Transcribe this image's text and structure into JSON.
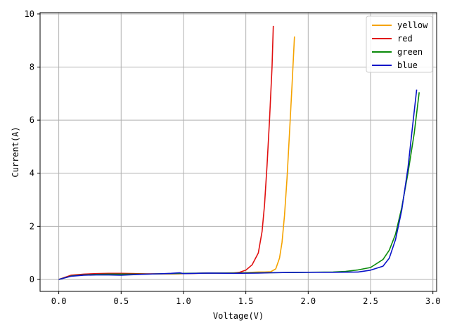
{
  "chart_data": {
    "type": "line",
    "title": "",
    "xlabel": "Voltage(V)",
    "ylabel": "Current(A)",
    "xlim": [
      -0.15,
      3.03
    ],
    "ylim": [
      -0.45,
      10.05
    ],
    "xticks": [
      0.0,
      0.5,
      1.0,
      1.5,
      2.0,
      2.5,
      3.0
    ],
    "xtick_labels": [
      "0.0",
      "0.5",
      "1.0",
      "1.5",
      "2.0",
      "2.5",
      "3.0"
    ],
    "yticks": [
      0,
      2,
      4,
      6,
      8,
      10
    ],
    "ytick_labels": [
      "0",
      "2",
      "4",
      "6",
      "8",
      "10"
    ],
    "grid": true,
    "legend_position": "top-right",
    "series": [
      {
        "name": "yellow",
        "color": "#f5a300",
        "x": [
          0.0,
          0.1,
          0.2,
          0.3,
          0.4,
          0.5,
          0.6,
          0.7,
          0.8,
          0.9,
          1.0,
          1.1,
          1.2,
          1.3,
          1.4,
          1.5,
          1.6,
          1.65,
          1.7,
          1.74,
          1.77,
          1.79,
          1.81,
          1.83,
          1.85,
          1.87,
          1.89
        ],
        "y": [
          0.0,
          0.14,
          0.18,
          0.2,
          0.22,
          0.22,
          0.22,
          0.21,
          0.21,
          0.21,
          0.22,
          0.23,
          0.24,
          0.24,
          0.25,
          0.26,
          0.28,
          0.28,
          0.29,
          0.4,
          0.8,
          1.4,
          2.4,
          3.8,
          5.5,
          7.3,
          9.15
        ]
      },
      {
        "name": "red",
        "color": "#e01010",
        "x": [
          0.0,
          0.1,
          0.2,
          0.3,
          0.4,
          0.5,
          0.6,
          0.7,
          0.8,
          0.9,
          1.0,
          1.1,
          1.2,
          1.3,
          1.4,
          1.45,
          1.5,
          1.55,
          1.6,
          1.63,
          1.65,
          1.67,
          1.69,
          1.71,
          1.72
        ],
        "y": [
          0.0,
          0.16,
          0.2,
          0.22,
          0.23,
          0.23,
          0.22,
          0.21,
          0.21,
          0.21,
          0.22,
          0.23,
          0.24,
          0.24,
          0.24,
          0.27,
          0.35,
          0.55,
          1.0,
          1.8,
          2.8,
          4.3,
          6.0,
          8.0,
          9.55
        ]
      },
      {
        "name": "green",
        "color": "#0a8a0a",
        "x": [
          0.0,
          0.1,
          0.2,
          0.3,
          0.4,
          0.5,
          0.6,
          0.7,
          0.8,
          0.9,
          1.0,
          1.2,
          1.4,
          1.6,
          1.8,
          2.0,
          2.2,
          2.3,
          2.4,
          2.5,
          2.6,
          2.65,
          2.7,
          2.75,
          2.8,
          2.85,
          2.89
        ],
        "y": [
          0.0,
          0.13,
          0.17,
          0.19,
          0.2,
          0.2,
          0.2,
          0.2,
          0.21,
          0.22,
          0.23,
          0.24,
          0.24,
          0.25,
          0.26,
          0.27,
          0.28,
          0.3,
          0.36,
          0.45,
          0.75,
          1.1,
          1.7,
          2.7,
          4.0,
          5.5,
          7.05
        ]
      },
      {
        "name": "blue",
        "color": "#0a14c8",
        "x": [
          0.0,
          0.1,
          0.2,
          0.3,
          0.4,
          0.5,
          0.6,
          0.7,
          0.8,
          0.9,
          0.97,
          1.0,
          1.2,
          1.4,
          1.6,
          1.8,
          2.0,
          2.2,
          2.4,
          2.5,
          2.6,
          2.65,
          2.7,
          2.75,
          2.8,
          2.84,
          2.87
        ],
        "y": [
          0.0,
          0.12,
          0.16,
          0.17,
          0.17,
          0.16,
          0.18,
          0.2,
          0.21,
          0.23,
          0.25,
          0.22,
          0.24,
          0.23,
          0.24,
          0.26,
          0.27,
          0.27,
          0.28,
          0.35,
          0.5,
          0.8,
          1.5,
          2.6,
          4.2,
          5.9,
          7.15
        ]
      }
    ]
  }
}
